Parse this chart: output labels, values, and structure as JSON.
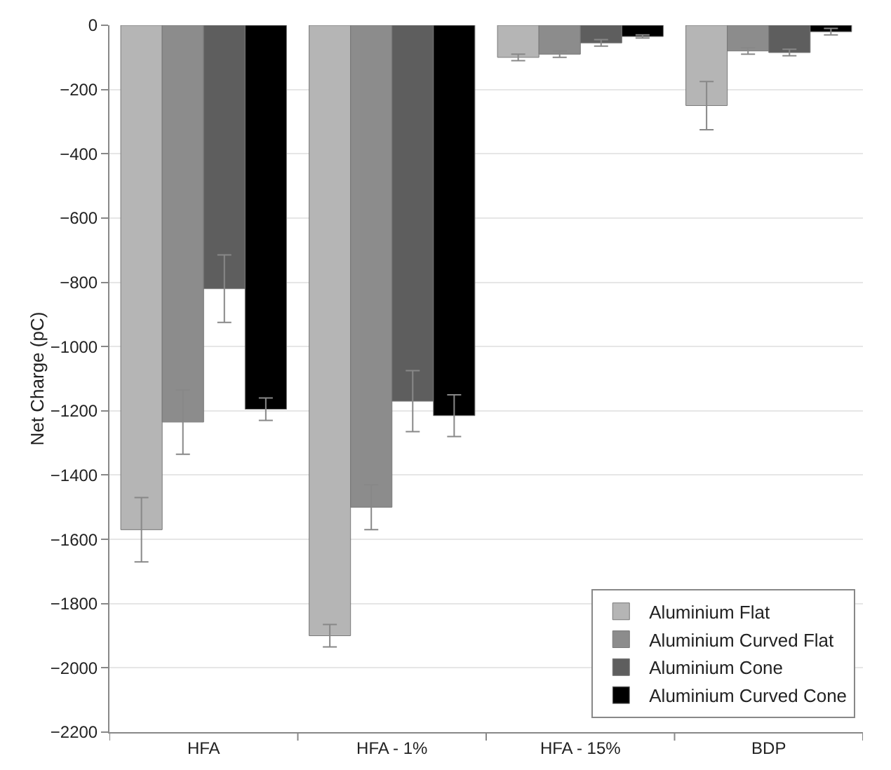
{
  "chart_data": {
    "type": "bar",
    "ylabel": "Net Charge (pC)",
    "categories": [
      "HFA",
      "HFA - 1%",
      "HFA - 15%",
      "BDP"
    ],
    "series": [
      {
        "name": "Aluminium Flat",
        "color": "#b5b5b5",
        "values": [
          -1570,
          -1900,
          -100,
          -250
        ],
        "errors": [
          100,
          35,
          10,
          75
        ]
      },
      {
        "name": "Aluminium Curved Flat",
        "color": "#8c8c8c",
        "values": [
          -1235,
          -1500,
          -90,
          -80
        ],
        "errors": [
          100,
          70,
          10,
          10
        ]
      },
      {
        "name": "Aluminium Cone",
        "color": "#5e5e5e",
        "values": [
          -820,
          -1170,
          -55,
          -85
        ],
        "errors": [
          105,
          95,
          10,
          10
        ]
      },
      {
        "name": "Aluminium Curved Cone",
        "color": "#000000",
        "values": [
          -1195,
          -1215,
          -35,
          -20
        ],
        "errors": [
          35,
          65,
          5,
          10
        ]
      }
    ],
    "ylim": [
      -2200,
      0
    ],
    "yticks": [
      0,
      -200,
      -400,
      -600,
      -800,
      -1000,
      -1200,
      -1400,
      -1600,
      -1800,
      -2000,
      -2200
    ],
    "grid": "y",
    "legend": "bottom right"
  }
}
